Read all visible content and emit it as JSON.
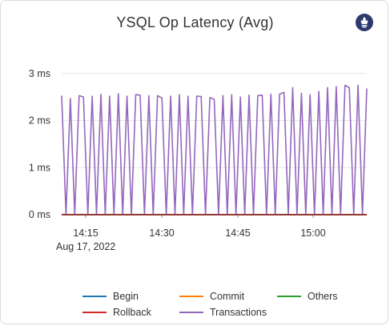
{
  "panel": {
    "title": "YSQL Op Latency (Avg)",
    "icon": "prometheus-icon",
    "icon_color": "#2d3a6e"
  },
  "chart_data": {
    "type": "line",
    "title": "YSQL Op Latency (Avg)",
    "xlabel": "",
    "ylabel": "",
    "ylim": [
      0,
      3.2
    ],
    "y_ticks": [
      "0 ms",
      "1 ms",
      "2 ms",
      "3 ms"
    ],
    "y_tick_values": [
      0,
      1,
      2,
      3
    ],
    "x_ticks": [
      "14:15",
      "14:30",
      "14:45",
      "15:00"
    ],
    "x_date_label": "Aug 17, 2022",
    "grid": "horizontal",
    "legend": "bottom",
    "series": [
      {
        "name": "Begin",
        "color": "#1f77b4",
        "values": [
          0,
          0
        ]
      },
      {
        "name": "Commit",
        "color": "#ff7f0e",
        "values": [
          0,
          0
        ]
      },
      {
        "name": "Others",
        "color": "#2ca02c",
        "values": [
          0,
          0
        ]
      },
      {
        "name": "Rollback",
        "color": "#d62728",
        "values": [
          0,
          0
        ]
      },
      {
        "name": "Transactions",
        "color": "#9467bd",
        "values": [
          2.53,
          0,
          2.47,
          0,
          2.53,
          2.5,
          0,
          2.52,
          0,
          2.56,
          0,
          2.52,
          0,
          2.57,
          0,
          2.52,
          0,
          2.55,
          2.54,
          0,
          2.53,
          0,
          2.53,
          2.48,
          0,
          2.52,
          0,
          2.55,
          0,
          2.52,
          0,
          2.52,
          2.51,
          0,
          2.49,
          2.45,
          0,
          2.53,
          0,
          2.55,
          0,
          2.5,
          0,
          2.54,
          0,
          2.53,
          2.54,
          0,
          2.56,
          0,
          2.56,
          2.6,
          0,
          2.7,
          0,
          2.58,
          0,
          2.55,
          0,
          2.62,
          0,
          2.7,
          0,
          2.72,
          0,
          2.75,
          2.7,
          0,
          2.75,
          0,
          2.68
        ]
      }
    ]
  }
}
